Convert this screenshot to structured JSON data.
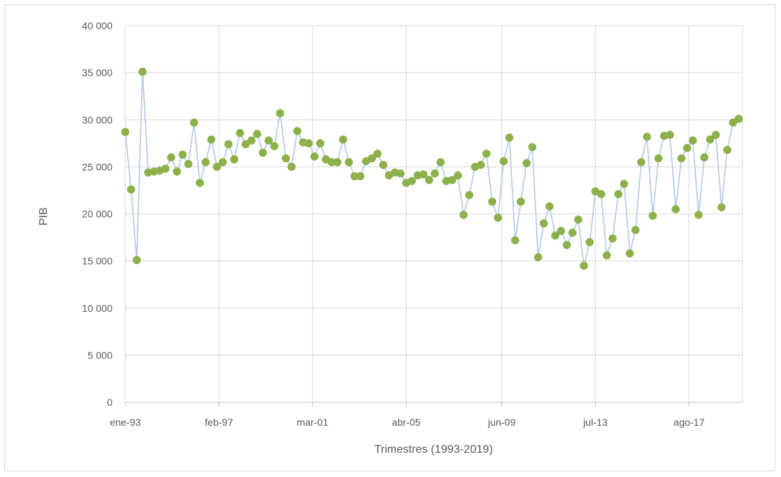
{
  "chart_data": {
    "type": "line",
    "title": "",
    "xlabel": "Trimestres (1993-2019)",
    "ylabel": "PIB",
    "ylim": [
      0,
      40000
    ],
    "yticks": [
      0,
      5000,
      10000,
      15000,
      20000,
      25000,
      30000,
      35000,
      40000
    ],
    "ytick_labels": [
      "0",
      "5 000",
      "10 000",
      "15 000",
      "20 000",
      "25 000",
      "30 000",
      "35 000",
      "40 000"
    ],
    "xtick_labels": [
      "ene-93",
      "feb-97",
      "mar-01",
      "abr-05",
      "jun-09",
      "jul-13",
      "ago-17"
    ],
    "xtick_months": [
      "1993-01",
      "1997-02",
      "2001-03",
      "2005-04",
      "2009-06",
      "2013-07",
      "2017-08"
    ],
    "x_start": "1993-01",
    "x_end": "2019-12",
    "grid": true,
    "legend": "none",
    "line_color": "#b4c7e7",
    "marker_color": "#8cb14a",
    "series": [
      {
        "x": [
          "1993-01",
          "1993-04",
          "1993-07",
          "1993-10",
          "1994-01",
          "1994-04",
          "1994-07",
          "1994-10",
          "1995-01",
          "1995-04",
          "1995-07",
          "1995-10",
          "1996-01",
          "1996-04",
          "1996-07",
          "1996-10",
          "1997-01",
          "1997-04",
          "1997-07",
          "1997-10",
          "1998-01",
          "1998-04",
          "1998-07",
          "1998-10",
          "1999-01",
          "1999-04",
          "1999-07",
          "1999-10",
          "2000-01",
          "2000-04",
          "2000-07",
          "2000-10",
          "2001-01",
          "2001-04",
          "2001-07",
          "2001-10",
          "2002-01",
          "2002-04",
          "2002-07",
          "2002-10",
          "2003-01",
          "2003-04",
          "2003-07",
          "2003-10",
          "2004-01",
          "2004-04",
          "2004-07",
          "2004-10",
          "2005-01",
          "2005-04",
          "2005-07",
          "2005-10",
          "2006-01",
          "2006-04",
          "2006-07",
          "2006-10",
          "2007-01",
          "2007-04",
          "2007-07",
          "2007-10",
          "2008-01",
          "2008-04",
          "2008-07",
          "2008-10",
          "2009-01",
          "2009-04",
          "2009-07",
          "2009-10",
          "2010-01",
          "2010-04",
          "2010-07",
          "2010-10",
          "2011-01",
          "2011-04",
          "2011-07",
          "2011-10",
          "2012-01",
          "2012-04",
          "2012-07",
          "2012-10",
          "2013-01",
          "2013-04",
          "2013-07",
          "2013-10",
          "2014-01",
          "2014-04",
          "2014-07",
          "2014-10",
          "2015-01",
          "2015-04",
          "2015-07",
          "2015-10",
          "2016-01",
          "2016-04",
          "2016-07",
          "2016-10",
          "2017-01",
          "2017-04",
          "2017-07",
          "2017-10",
          "2018-01",
          "2018-04",
          "2018-07",
          "2018-10",
          "2019-01",
          "2019-04",
          "2019-07",
          "2019-10"
        ],
        "values": [
          28700,
          22600,
          15100,
          35100,
          24400,
          24500,
          24600,
          24800,
          26000,
          24500,
          26300,
          25300,
          29700,
          23300,
          25500,
          27900,
          25000,
          25500,
          27400,
          25800,
          28600,
          27400,
          27800,
          28500,
          26500,
          27800,
          27200,
          30700,
          25900,
          25000,
          28800,
          27600,
          27500,
          26100,
          27500,
          25800,
          25500,
          25500,
          27900,
          25500,
          24000,
          24000,
          25600,
          25900,
          26400,
          25200,
          24100,
          24400,
          24300,
          23300,
          23500,
          24100,
          24200,
          23600,
          24300,
          25500,
          23500,
          23600,
          24100,
          19900,
          22000,
          25000,
          25200,
          26400,
          21300,
          19600,
          25600,
          28100,
          17200,
          21300,
          25400,
          27100,
          15400,
          19000,
          20800,
          17700,
          18200,
          16700,
          18000,
          19400,
          14500,
          17000,
          22400,
          22100,
          15600,
          17400,
          22100,
          23200,
          15800,
          18300,
          25500,
          28200,
          19800,
          25900,
          28300,
          28400,
          20500,
          25900,
          27000,
          27800,
          19900,
          26000,
          27900,
          28400,
          20700,
          26800,
          29700,
          30100
        ]
      }
    ]
  }
}
